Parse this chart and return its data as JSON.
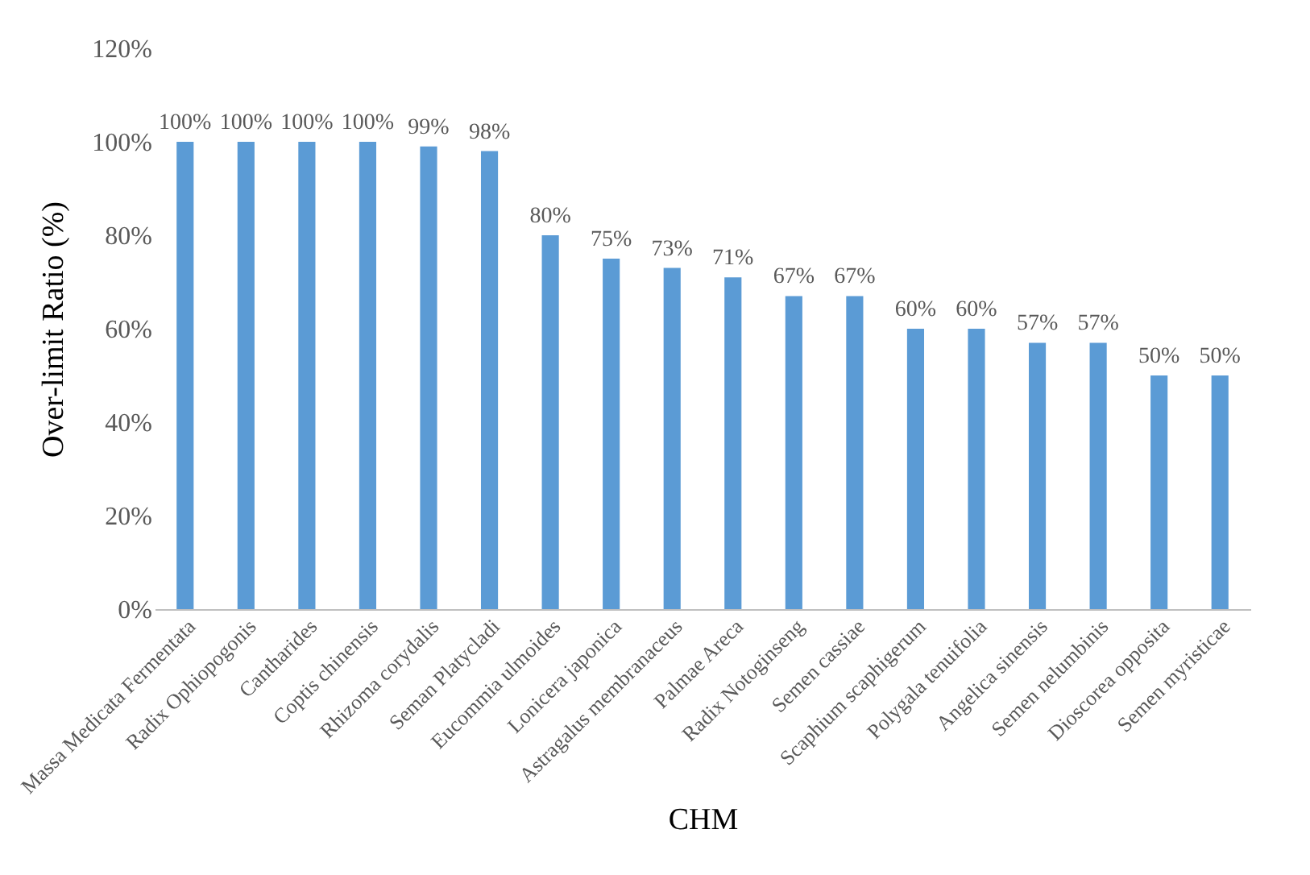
{
  "chart_data": {
    "type": "bar",
    "xlabel": "CHM",
    "ylabel": "Over-limit Ratio (%)",
    "categories": [
      "Massa Medicata Fermentata",
      "Radix Ophiopogonis",
      "Cantharides",
      "Coptis chinensis",
      "Rhizoma corydalis",
      "Seman Platycladi",
      "Eucommia ulmoides",
      "Lonicera japonica",
      "Astragalus membranaceus",
      "Palmae Areca",
      "Radix Notoginseng",
      "Semen cassiae",
      "Scaphium scaphigerum",
      "Polygala tenuifolia",
      "Angelica sinensis",
      "Semen nelumbinis",
      "Dioscorea opposita",
      "Semen myristicae"
    ],
    "values": [
      100,
      100,
      100,
      100,
      99,
      98,
      80,
      75,
      73,
      71,
      67,
      67,
      60,
      60,
      57,
      57,
      50,
      50
    ],
    "value_labels": [
      "100%",
      "100%",
      "100%",
      "100%",
      "99%",
      "98%",
      "80%",
      "75%",
      "73%",
      "71%",
      "67%",
      "67%",
      "60%",
      "60%",
      "57%",
      "57%",
      "50%",
      "50%"
    ],
    "color": "#5b9bd5",
    "ylim": [
      0,
      120
    ],
    "yticks": [
      {
        "value": 0,
        "label": "0%"
      },
      {
        "value": 20,
        "label": "20%"
      },
      {
        "value": 40,
        "label": "40%"
      },
      {
        "value": 60,
        "label": "60%"
      },
      {
        "value": 80,
        "label": "80%"
      },
      {
        "value": 100,
        "label": "100%"
      },
      {
        "value": 120,
        "label": "120%"
      }
    ],
    "grid": false
  }
}
